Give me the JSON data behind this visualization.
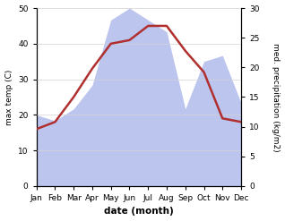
{
  "months": [
    "Jan",
    "Feb",
    "Mar",
    "Apr",
    "May",
    "Jun",
    "Jul",
    "Aug",
    "Sep",
    "Oct",
    "Nov",
    "Dec"
  ],
  "temperature": [
    16,
    18,
    25,
    33,
    40,
    41,
    45,
    45,
    38,
    32,
    19,
    18
  ],
  "precipitation": [
    12,
    11,
    13,
    17,
    28,
    30,
    28,
    26,
    13,
    21,
    22,
    14
  ],
  "temp_color": "#b03030",
  "precip_fill_color": "#bbc5ee",
  "xlabel": "date (month)",
  "ylabel_left": "max temp (C)",
  "ylabel_right": "med. precipitation (kg/m2)",
  "ylim_left": [
    0,
    50
  ],
  "ylim_right": [
    0,
    30
  ],
  "yticks_left": [
    0,
    10,
    20,
    30,
    40,
    50
  ],
  "yticks_right": [
    0,
    5,
    10,
    15,
    20,
    25,
    30
  ],
  "line_width": 1.8
}
